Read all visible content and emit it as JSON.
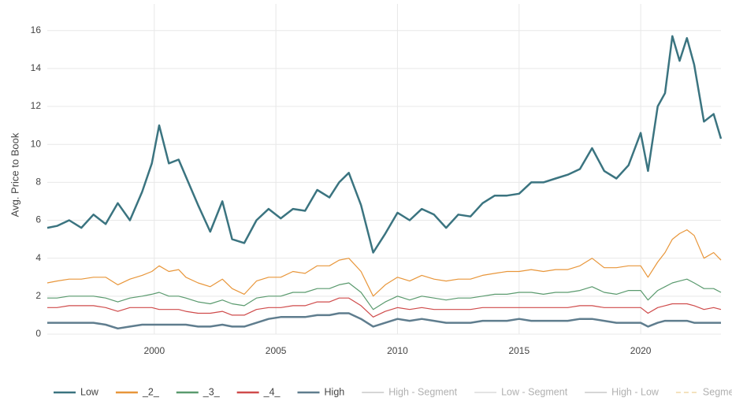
{
  "chart_data": {
    "type": "line",
    "y_label": "Avg. Price to Book",
    "x": [
      1995.6,
      1996,
      1996.5,
      1997,
      1997.5,
      1998,
      1998.5,
      1999,
      1999.5,
      1999.9,
      2000.2,
      2000.6,
      2001,
      2001.3,
      2001.8,
      2002.3,
      2002.8,
      2003.2,
      2003.7,
      2004.2,
      2004.7,
      2005.2,
      2005.7,
      2006.2,
      2006.7,
      2007.2,
      2007.6,
      2008,
      2008.5,
      2009,
      2009.5,
      2010,
      2010.5,
      2011,
      2011.5,
      2012,
      2012.5,
      2013,
      2013.5,
      2014,
      2014.5,
      2015,
      2015.5,
      2016,
      2016.5,
      2017,
      2017.5,
      2018,
      2018.5,
      2019,
      2019.5,
      2020,
      2020.3,
      2020.7,
      2021,
      2021.3,
      2021.6,
      2021.9,
      2022.2,
      2022.6,
      2023,
      2023.3
    ],
    "xlim": [
      1995.6,
      2023.3
    ],
    "xticks": [
      2000,
      2005,
      2010,
      2015,
      2020
    ],
    "ylim": [
      0,
      17.4
    ],
    "yticks": [
      0,
      2,
      4,
      6,
      8,
      10,
      12,
      14,
      16
    ],
    "grid": true,
    "legend": "bottom",
    "series": [
      {
        "name": "Low",
        "color": "#3b7480",
        "width": 2.5,
        "values": [
          5.6,
          5.7,
          6.0,
          5.6,
          6.3,
          5.8,
          6.9,
          6.0,
          7.5,
          9.0,
          11.0,
          9.0,
          9.2,
          8.3,
          6.8,
          5.4,
          7.0,
          5.0,
          4.8,
          6.0,
          6.6,
          6.1,
          6.6,
          6.5,
          7.6,
          7.2,
          8.0,
          8.5,
          6.8,
          4.3,
          5.3,
          6.4,
          6.0,
          6.6,
          6.3,
          5.6,
          6.3,
          6.2,
          6.9,
          7.3,
          7.3,
          7.4,
          8.0,
          8.0,
          8.2,
          8.4,
          8.7,
          9.8,
          8.6,
          8.2,
          8.9,
          10.6,
          8.6,
          12.0,
          12.7,
          15.7,
          14.4,
          15.6,
          14.2,
          11.2,
          11.6,
          10.3
        ]
      },
      {
        "name": "_2_",
        "color": "#e8963a",
        "width": 1.2,
        "values": [
          2.7,
          2.8,
          2.9,
          2.9,
          3.0,
          3.0,
          2.6,
          2.9,
          3.1,
          3.3,
          3.6,
          3.3,
          3.4,
          3.0,
          2.7,
          2.5,
          2.9,
          2.4,
          2.1,
          2.8,
          3.0,
          3.0,
          3.3,
          3.2,
          3.6,
          3.6,
          3.9,
          4.0,
          3.3,
          2.0,
          2.6,
          3.0,
          2.8,
          3.1,
          2.9,
          2.8,
          2.9,
          2.9,
          3.1,
          3.2,
          3.3,
          3.3,
          3.4,
          3.3,
          3.4,
          3.4,
          3.6,
          4.0,
          3.5,
          3.5,
          3.6,
          3.6,
          3.0,
          3.8,
          4.3,
          5.0,
          5.3,
          5.5,
          5.2,
          4.0,
          4.3,
          3.9
        ]
      },
      {
        "name": "_3_",
        "color": "#5a9a6e",
        "width": 1.2,
        "values": [
          1.9,
          1.9,
          2.0,
          2.0,
          2.0,
          1.9,
          1.7,
          1.9,
          2.0,
          2.1,
          2.2,
          2.0,
          2.0,
          1.9,
          1.7,
          1.6,
          1.8,
          1.6,
          1.5,
          1.9,
          2.0,
          2.0,
          2.2,
          2.2,
          2.4,
          2.4,
          2.6,
          2.7,
          2.2,
          1.3,
          1.7,
          2.0,
          1.8,
          2.0,
          1.9,
          1.8,
          1.9,
          1.9,
          2.0,
          2.1,
          2.1,
          2.2,
          2.2,
          2.1,
          2.2,
          2.2,
          2.3,
          2.5,
          2.2,
          2.1,
          2.3,
          2.3,
          1.8,
          2.3,
          2.5,
          2.7,
          2.8,
          2.9,
          2.7,
          2.4,
          2.4,
          2.2
        ]
      },
      {
        "name": "_4_",
        "color": "#cf4b4b",
        "width": 1.2,
        "values": [
          1.4,
          1.4,
          1.5,
          1.5,
          1.5,
          1.4,
          1.2,
          1.4,
          1.4,
          1.4,
          1.3,
          1.3,
          1.3,
          1.2,
          1.1,
          1.1,
          1.2,
          1.0,
          1.0,
          1.3,
          1.4,
          1.4,
          1.5,
          1.5,
          1.7,
          1.7,
          1.9,
          1.9,
          1.5,
          0.9,
          1.2,
          1.4,
          1.3,
          1.4,
          1.3,
          1.3,
          1.3,
          1.3,
          1.4,
          1.4,
          1.4,
          1.4,
          1.4,
          1.4,
          1.4,
          1.4,
          1.5,
          1.5,
          1.4,
          1.4,
          1.4,
          1.4,
          1.1,
          1.4,
          1.5,
          1.6,
          1.6,
          1.6,
          1.5,
          1.3,
          1.4,
          1.3
        ]
      },
      {
        "name": "High",
        "color": "#5f7d8e",
        "width": 2.5,
        "values": [
          0.6,
          0.6,
          0.6,
          0.6,
          0.6,
          0.5,
          0.3,
          0.4,
          0.5,
          0.5,
          0.5,
          0.5,
          0.5,
          0.5,
          0.4,
          0.4,
          0.5,
          0.4,
          0.4,
          0.6,
          0.8,
          0.9,
          0.9,
          0.9,
          1.0,
          1.0,
          1.1,
          1.1,
          0.8,
          0.4,
          0.6,
          0.8,
          0.7,
          0.8,
          0.7,
          0.6,
          0.6,
          0.6,
          0.7,
          0.7,
          0.7,
          0.8,
          0.7,
          0.7,
          0.7,
          0.7,
          0.8,
          0.8,
          0.7,
          0.6,
          0.6,
          0.6,
          0.4,
          0.6,
          0.7,
          0.7,
          0.7,
          0.7,
          0.6,
          0.6,
          0.6,
          0.6
        ]
      },
      {
        "name": "High - Segment",
        "color": "#c8c8c8",
        "visible": false
      },
      {
        "name": "Low - Segment",
        "color": "#dcdcdc",
        "visible": false
      },
      {
        "name": "High - Low",
        "color": "#c8c8c8",
        "visible": false
      },
      {
        "name": "Segment",
        "color": "#f0d9a8",
        "dashed": true,
        "visible": false
      }
    ]
  }
}
